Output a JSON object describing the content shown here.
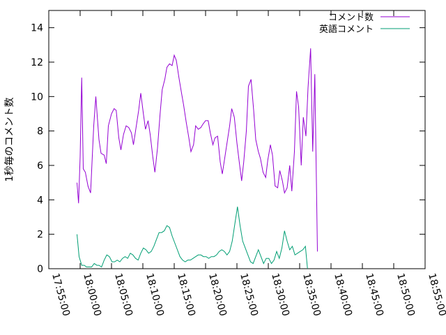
{
  "chart_data": {
    "type": "line",
    "title": "",
    "ylabel": "1秒毎のコメント数",
    "xlabel": "",
    "ylim": [
      0,
      15
    ],
    "yticks": [
      "0",
      "2",
      "4",
      "6",
      "8",
      "10",
      "12",
      "14"
    ],
    "ytick_values": [
      0,
      2,
      4,
      6,
      8,
      10,
      12,
      14
    ],
    "x_range": [
      "17:55:00",
      "18:55:00"
    ],
    "xticks": [
      "17:55:00",
      "18:00:00",
      "18:05:00",
      "18:10:00",
      "18:15:00",
      "18:20:00",
      "18:25:00",
      "18:30:00",
      "18:35:00",
      "18:40:00",
      "18:45:00",
      "18:50:00",
      "18:55:00"
    ],
    "legend_position": "top-right",
    "series": [
      {
        "name": "コメント数",
        "color": "#9400d3",
        "points": [
          [
            "17:59:30",
            5.0
          ],
          [
            "17:59:45",
            3.8
          ],
          [
            "18:00:00",
            6.5
          ],
          [
            "18:00:15",
            11.1
          ],
          [
            "18:00:30",
            5.8
          ],
          [
            "18:00:50",
            5.6
          ],
          [
            "18:01:15",
            4.8
          ],
          [
            "18:01:40",
            4.4
          ],
          [
            "18:02:10",
            8.3
          ],
          [
            "18:02:30",
            10.0
          ],
          [
            "18:03:00",
            7.5
          ],
          [
            "18:03:20",
            6.7
          ],
          [
            "18:03:50",
            6.6
          ],
          [
            "18:04:10",
            6.1
          ],
          [
            "18:04:30",
            8.3
          ],
          [
            "18:05:00",
            9.0
          ],
          [
            "18:05:25",
            9.3
          ],
          [
            "18:05:45",
            9.2
          ],
          [
            "18:06:10",
            7.6
          ],
          [
            "18:06:30",
            6.9
          ],
          [
            "18:06:55",
            7.8
          ],
          [
            "18:07:20",
            8.3
          ],
          [
            "18:07:45",
            8.2
          ],
          [
            "18:08:10",
            7.9
          ],
          [
            "18:08:30",
            7.2
          ],
          [
            "18:08:55",
            8.2
          ],
          [
            "18:09:20",
            9.2
          ],
          [
            "18:09:40",
            10.2
          ],
          [
            "18:10:05",
            9.0
          ],
          [
            "18:10:25",
            8.1
          ],
          [
            "18:10:50",
            8.6
          ],
          [
            "18:11:10",
            7.8
          ],
          [
            "18:11:35",
            6.5
          ],
          [
            "18:11:55",
            5.6
          ],
          [
            "18:12:20",
            7.0
          ],
          [
            "18:12:45",
            9.0
          ],
          [
            "18:13:05",
            10.4
          ],
          [
            "18:13:30",
            11.0
          ],
          [
            "18:13:50",
            11.7
          ],
          [
            "18:14:15",
            11.9
          ],
          [
            "18:14:40",
            11.8
          ],
          [
            "18:15:00",
            12.4
          ],
          [
            "18:15:20",
            12.1
          ],
          [
            "18:15:45",
            11.1
          ],
          [
            "18:16:10",
            10.2
          ],
          [
            "18:16:30",
            9.5
          ],
          [
            "18:16:55",
            8.5
          ],
          [
            "18:17:20",
            7.6
          ],
          [
            "18:17:40",
            6.8
          ],
          [
            "18:18:05",
            7.2
          ],
          [
            "18:18:25",
            8.3
          ],
          [
            "18:18:50",
            8.1
          ],
          [
            "18:19:15",
            8.2
          ],
          [
            "18:19:35",
            8.4
          ],
          [
            "18:20:00",
            8.6
          ],
          [
            "18:20:25",
            8.6
          ],
          [
            "18:20:45",
            7.9
          ],
          [
            "18:21:10",
            7.2
          ],
          [
            "18:21:30",
            7.6
          ],
          [
            "18:21:55",
            7.7
          ],
          [
            "18:22:20",
            6.2
          ],
          [
            "18:22:40",
            5.5
          ],
          [
            "18:23:05",
            6.5
          ],
          [
            "18:23:25",
            7.3
          ],
          [
            "18:23:50",
            8.3
          ],
          [
            "18:24:10",
            9.3
          ],
          [
            "18:24:35",
            8.8
          ],
          [
            "18:25:00",
            7.3
          ],
          [
            "18:25:20",
            6.3
          ],
          [
            "18:25:45",
            5.1
          ],
          [
            "18:26:05",
            6.2
          ],
          [
            "18:26:30",
            8.0
          ],
          [
            "18:26:50",
            10.6
          ],
          [
            "18:27:15",
            11.0
          ],
          [
            "18:27:40",
            9.2
          ],
          [
            "18:28:00",
            7.5
          ],
          [
            "18:28:25",
            6.8
          ],
          [
            "18:28:45",
            6.4
          ],
          [
            "18:29:10",
            5.6
          ],
          [
            "18:29:35",
            5.3
          ],
          [
            "18:29:55",
            6.3
          ],
          [
            "18:30:20",
            7.2
          ],
          [
            "18:30:40",
            6.6
          ],
          [
            "18:31:05",
            4.8
          ],
          [
            "18:31:30",
            4.7
          ],
          [
            "18:31:50",
            5.7
          ],
          [
            "18:32:15",
            5.1
          ],
          [
            "18:32:35",
            4.4
          ],
          [
            "18:33:00",
            4.7
          ],
          [
            "18:33:25",
            6.0
          ],
          [
            "18:33:45",
            4.5
          ],
          [
            "18:34:10",
            6.8
          ],
          [
            "18:34:30",
            10.3
          ],
          [
            "18:34:50",
            9.4
          ],
          [
            "18:35:15",
            6.0
          ],
          [
            "18:35:35",
            8.8
          ],
          [
            "18:36:00",
            7.7
          ],
          [
            "18:36:20",
            10.5
          ],
          [
            "18:36:45",
            12.8
          ],
          [
            "18:37:05",
            6.8
          ],
          [
            "18:37:25",
            11.3
          ],
          [
            "18:37:50",
            1.0
          ]
        ]
      },
      {
        "name": "英語コメント",
        "color": "#009e73",
        "points": [
          [
            "17:59:30",
            2.0
          ],
          [
            "17:59:50",
            0.7
          ],
          [
            "18:00:15",
            0.2
          ],
          [
            "18:00:40",
            0.2
          ],
          [
            "18:01:00",
            0.1
          ],
          [
            "18:01:25",
            0.1
          ],
          [
            "18:01:50",
            0.1
          ],
          [
            "18:02:15",
            0.3
          ],
          [
            "18:02:40",
            0.2
          ],
          [
            "18:03:00",
            0.2
          ],
          [
            "18:03:25",
            0.1
          ],
          [
            "18:03:50",
            0.5
          ],
          [
            "18:04:15",
            0.8
          ],
          [
            "18:04:40",
            0.7
          ],
          [
            "18:05:05",
            0.4
          ],
          [
            "18:05:30",
            0.4
          ],
          [
            "18:05:55",
            0.5
          ],
          [
            "18:06:20",
            0.4
          ],
          [
            "18:06:45",
            0.6
          ],
          [
            "18:07:10",
            0.7
          ],
          [
            "18:07:35",
            0.6
          ],
          [
            "18:08:00",
            0.9
          ],
          [
            "18:08:25",
            0.8
          ],
          [
            "18:08:50",
            0.6
          ],
          [
            "18:09:15",
            0.5
          ],
          [
            "18:09:40",
            0.9
          ],
          [
            "18:10:05",
            1.2
          ],
          [
            "18:10:30",
            1.1
          ],
          [
            "18:10:55",
            0.9
          ],
          [
            "18:11:20",
            1.0
          ],
          [
            "18:11:45",
            1.3
          ],
          [
            "18:12:10",
            1.7
          ],
          [
            "18:12:35",
            2.1
          ],
          [
            "18:13:00",
            2.1
          ],
          [
            "18:13:25",
            2.2
          ],
          [
            "18:13:50",
            2.5
          ],
          [
            "18:14:15",
            2.4
          ],
          [
            "18:14:40",
            1.9
          ],
          [
            "18:15:05",
            1.5
          ],
          [
            "18:15:30",
            1.1
          ],
          [
            "18:15:55",
            0.7
          ],
          [
            "18:16:20",
            0.5
          ],
          [
            "18:16:45",
            0.4
          ],
          [
            "18:17:10",
            0.5
          ],
          [
            "18:17:35",
            0.5
          ],
          [
            "18:18:00",
            0.6
          ],
          [
            "18:18:25",
            0.7
          ],
          [
            "18:18:50",
            0.8
          ],
          [
            "18:19:15",
            0.8
          ],
          [
            "18:19:40",
            0.7
          ],
          [
            "18:20:05",
            0.7
          ],
          [
            "18:20:30",
            0.6
          ],
          [
            "18:20:55",
            0.7
          ],
          [
            "18:21:20",
            0.7
          ],
          [
            "18:21:45",
            0.8
          ],
          [
            "18:22:10",
            1.0
          ],
          [
            "18:22:35",
            1.1
          ],
          [
            "18:23:00",
            1.0
          ],
          [
            "18:23:25",
            0.8
          ],
          [
            "18:23:50",
            1.0
          ],
          [
            "18:24:15",
            1.6
          ],
          [
            "18:24:40",
            2.6
          ],
          [
            "18:25:05",
            3.6
          ],
          [
            "18:25:30",
            2.5
          ],
          [
            "18:25:55",
            1.6
          ],
          [
            "18:26:20",
            1.2
          ],
          [
            "18:26:45",
            0.8
          ],
          [
            "18:27:10",
            0.4
          ],
          [
            "18:27:35",
            0.3
          ],
          [
            "18:28:00",
            0.7
          ],
          [
            "18:28:25",
            1.1
          ],
          [
            "18:28:50",
            0.7
          ],
          [
            "18:29:15",
            0.3
          ],
          [
            "18:29:40",
            0.6
          ],
          [
            "18:30:05",
            0.6
          ],
          [
            "18:30:30",
            0.3
          ],
          [
            "18:30:55",
            0.5
          ],
          [
            "18:31:20",
            1.0
          ],
          [
            "18:31:45",
            0.6
          ],
          [
            "18:32:10",
            1.2
          ],
          [
            "18:32:35",
            2.2
          ],
          [
            "18:33:00",
            1.6
          ],
          [
            "18:33:25",
            1.1
          ],
          [
            "18:33:50",
            1.3
          ],
          [
            "18:34:15",
            0.8
          ],
          [
            "18:34:40",
            0.9
          ],
          [
            "18:35:05",
            1.0
          ],
          [
            "18:35:30",
            1.1
          ],
          [
            "18:35:55",
            1.3
          ],
          [
            "18:36:15",
            0.0
          ]
        ]
      }
    ]
  }
}
